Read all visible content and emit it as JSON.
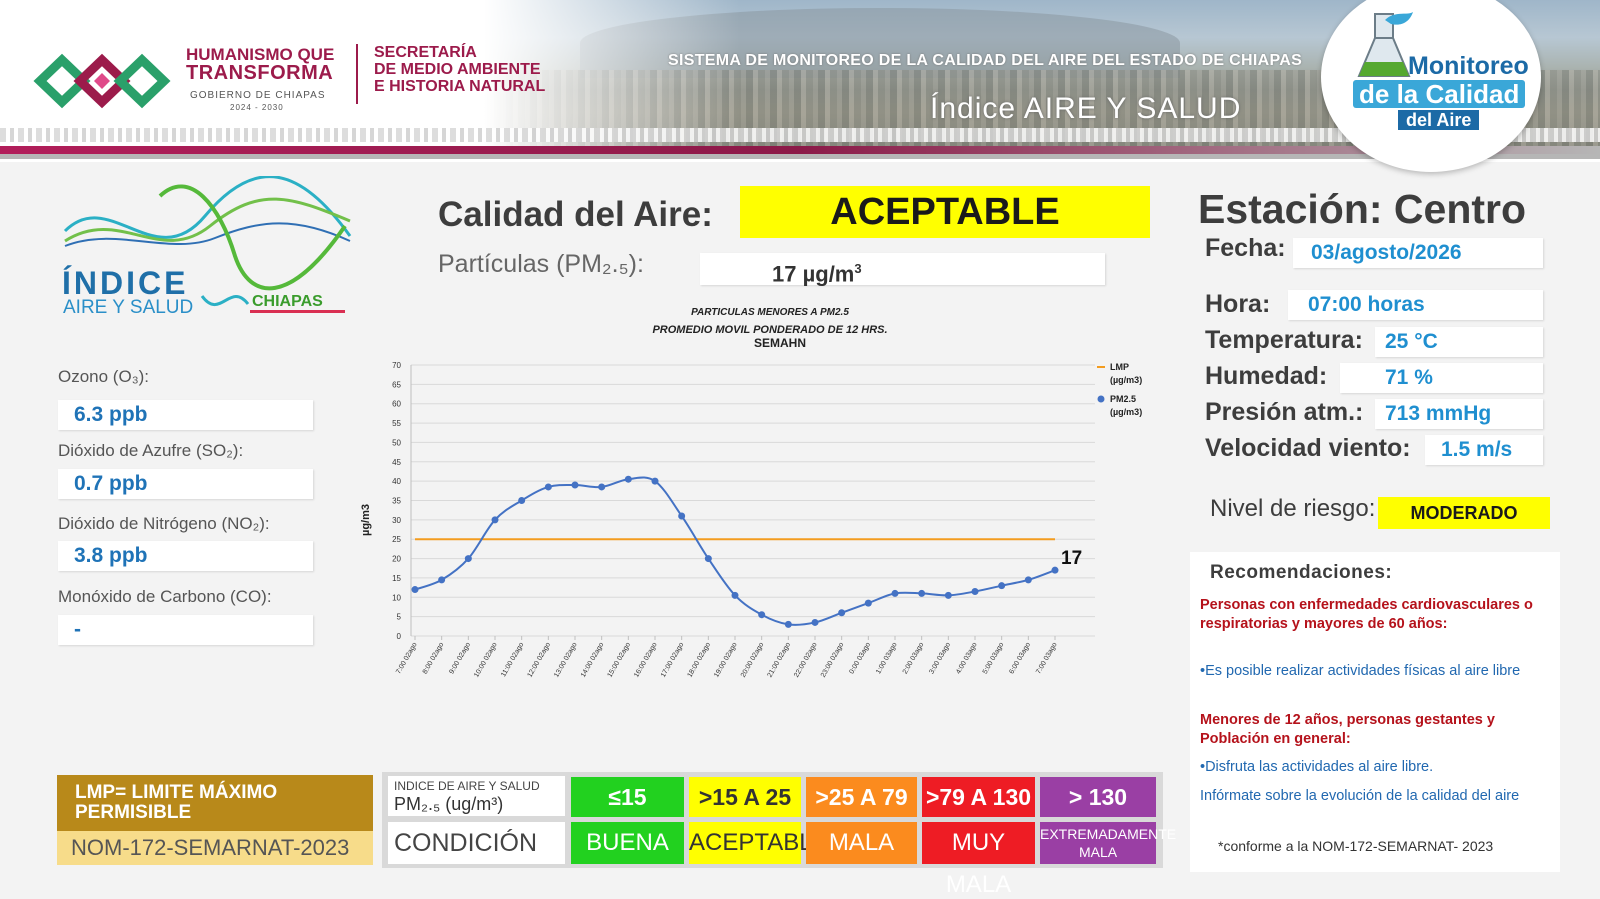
{
  "header": {
    "gob_line1": "HUMANISMO QUE",
    "gob_line2": "TRANSFORMA",
    "gob_line3": "GOBIERNO DE CHIAPAS",
    "gob_years": "2024 - 2030",
    "secretaria_lines": [
      "SECRETARÍA",
      "DE MEDIO AMBIENTE",
      "E HISTORIA NATURAL"
    ],
    "system_title": "SISTEMA DE MONITOREO DE LA CALIDAD DEL AIRE DEL ESTADO DE CHIAPAS",
    "system_subtitle": "Índice AIRE Y SALUD",
    "badge_line1": "Monitoreo",
    "badge_line2": "de la Calidad",
    "badge_line3": "del Aire"
  },
  "logo": {
    "line1": "ÍNDICE",
    "line2": "AIRE Y SALUD",
    "region": "CHIAPAS"
  },
  "pollutants": [
    {
      "label": "Ozono (O₃):",
      "value": "6.3 ppb"
    },
    {
      "label": "Dióxido de Azufre (SO₂):",
      "value": "0.7 ppb"
    },
    {
      "label": "Dióxido de Nitrógeno (NO₂):",
      "value": "3.8 ppb"
    },
    {
      "label": "Monóxido de Carbono (CO):",
      "value": "-"
    }
  ],
  "air_quality": {
    "label": "Calidad del Aire:",
    "value": "ACEPTABLE",
    "value_color": "#ffff00",
    "pm_label": "Partículas (PM₂.₅):",
    "pm_value": "17 µg/m",
    "pm_unit_sup": "3"
  },
  "station": {
    "title": "Estación: Centro",
    "fields": [
      {
        "label": "Fecha:",
        "value": "03/agosto/2026"
      },
      {
        "label": "Hora:",
        "value": "07:00 horas"
      },
      {
        "label": "Temperatura:",
        "value": "25 °C"
      },
      {
        "label": "Humedad:",
        "value": "71 %"
      },
      {
        "label": "Presión atm.:",
        "value": "713 mmHg"
      },
      {
        "label": "Velocidad viento:",
        "value": "1.5 m/s"
      }
    ],
    "risk_label": "Nivel de riesgo:",
    "risk_value": "MODERADO",
    "risk_color": "#ffff00"
  },
  "recommendations": {
    "title": "Recomendaciones:",
    "group1_title": "Personas con enfermedades cardiovasculares o respiratorias y mayores de 60 años:",
    "group1_text": "•Es posible realizar actividades físicas al aire libre",
    "group2_title": "Menores de 12 años, personas gestantes y Población en general:",
    "group2_text": "•Disfruta las actividades al aire libre.",
    "info_text": "Infórmate sobre la evolución de la calidad del aire",
    "note": "*conforme a la NOM-172-SEMARNAT- 2023"
  },
  "legend": {
    "lmp_definition": "LMP= LIMITE MÁXIMO PERMISIBLE",
    "norm": "NOM-172-SEMARNAT-2023",
    "index_header": "INDICE DE AIRE Y SALUD",
    "index_unit": "PM₂.₅ (ug/m³)",
    "condition_header": "CONDICIÓN",
    "scale": [
      {
        "range": "≤15",
        "condition": "BUENA",
        "color": "#22d11f"
      },
      {
        "range": ">15 A 25",
        "condition": "ACEPTABLE",
        "color": "#ffff00"
      },
      {
        "range": ">25 A 79",
        "condition": "MALA",
        "color": "#fb8b1e"
      },
      {
        "range": ">79 A 130",
        "condition": "MUY MALA",
        "color": "#ee1c24"
      },
      {
        "range": "> 130",
        "condition": "EXTREMADAMENTE MALA",
        "color": "#9a3fa4"
      }
    ]
  },
  "chart_data": {
    "type": "line",
    "title": "PARTICULAS MENORES A PM2.5",
    "subtitle": "PROMEDIO MOVIL PONDERADO DE 12 HRS.",
    "source": "SEMAHN",
    "ylabel": "µg/m3",
    "ylim": [
      0,
      70
    ],
    "yticks": [
      0,
      5,
      10,
      15,
      20,
      25,
      30,
      35,
      40,
      45,
      50,
      55,
      60,
      65,
      70
    ],
    "categories": [
      "7:00 02ago",
      "8:00 02ago",
      "9:00 02ago",
      "10:00 02ago",
      "11:00 02ago",
      "12:00 02ago",
      "13:00 02ago",
      "14:00 02ago",
      "15:00 02ago",
      "16:00 02ago",
      "17:00 02ago",
      "18:00 02ago",
      "19:00 02ago",
      "20:00 02ago",
      "21:00 02ago",
      "22:00 02ago",
      "23:00 02ago",
      "0:00 03ago",
      "1:00 03ago",
      "2:00 03ago",
      "3:00 03ago",
      "4:00 03ago",
      "5:00 03ago",
      "6:00 03ago",
      "7:00 03ago"
    ],
    "series": [
      {
        "name": "LMP (µg/m3)",
        "color": "#f39c1f",
        "values": [
          25,
          25,
          25,
          25,
          25,
          25,
          25,
          25,
          25,
          25,
          25,
          25,
          25,
          25,
          25,
          25,
          25,
          25,
          25,
          25,
          25,
          25,
          25,
          25,
          25
        ]
      },
      {
        "name": "PM2.5 (µg/m3)",
        "color": "#4472c4",
        "values": [
          12,
          14.5,
          20,
          30,
          35,
          38.5,
          39,
          38.5,
          40.5,
          40,
          31,
          20,
          10.5,
          5.5,
          3,
          3.5,
          6,
          8.5,
          11,
          11,
          10.5,
          11.5,
          13,
          14.5,
          17
        ]
      }
    ],
    "last_label": "17",
    "legend_position": "right",
    "grid": "horizontal"
  }
}
